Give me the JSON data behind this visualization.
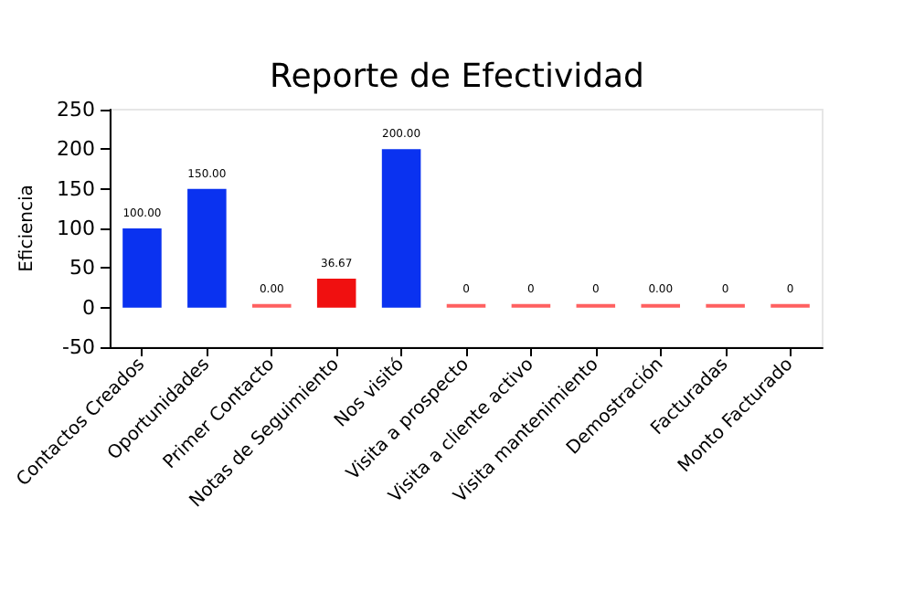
{
  "chart_data": {
    "type": "bar",
    "title": "Reporte de Efectividad",
    "ylabel": "Eficiencia",
    "categories": [
      "Contactos Creados",
      "Oportunidades",
      "Primer Contacto",
      "Notas de Seguimiento",
      "Nos visitó",
      "Visita a prospecto",
      "Visita a cliente activo",
      "Visita mantenimiento",
      "Demostración",
      "Facturadas",
      "Monto Facturado"
    ],
    "values": [
      100,
      150,
      0,
      36.67,
      200,
      0,
      0,
      0,
      0,
      0,
      0
    ],
    "colors": [
      "#0a32f0",
      "#0a32f0",
      "#ff6060",
      "#f01010",
      "#0a32f0",
      "#ff6060",
      "#ff6060",
      "#ff6060",
      "#ff6060",
      "#ff6060",
      "#ff6060"
    ],
    "value_labels": [
      "100.00",
      "150.00",
      "0.00",
      "36.67",
      "200.00",
      "0",
      "0",
      "0",
      "0.00",
      "0",
      "0"
    ],
    "ylim": [
      -50,
      250
    ],
    "yticks": [
      -50,
      0,
      50,
      100,
      150,
      200,
      250
    ],
    "grid": false
  }
}
